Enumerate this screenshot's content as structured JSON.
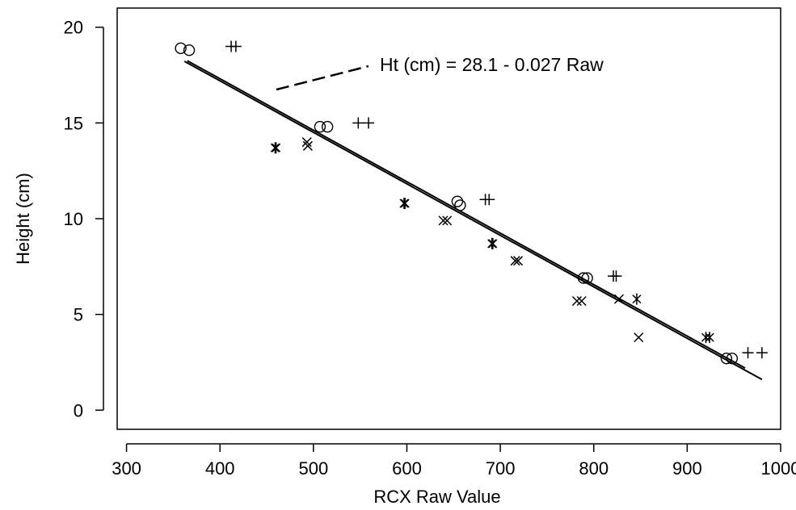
{
  "chart_data": {
    "type": "scatter",
    "xlabel": "RCX Raw Value",
    "ylabel": "Height (cm)",
    "xlim": [
      290,
      1000
    ],
    "ylim": [
      -1,
      21
    ],
    "xticks": [
      300,
      400,
      500,
      600,
      700,
      800,
      900,
      1000
    ],
    "yticks": [
      0,
      5,
      10,
      15,
      20
    ],
    "grid": false,
    "legend": "none",
    "annotation": "Ht (cm) = 28.1 - 0.027 Raw",
    "series": [
      {
        "marker": "circle",
        "points": [
          [
            358,
            18.9
          ],
          [
            367,
            18.8
          ],
          [
            507,
            14.8
          ],
          [
            515,
            14.8
          ],
          [
            654,
            10.9
          ],
          [
            657,
            10.7
          ],
          [
            789,
            6.9
          ],
          [
            793,
            6.9
          ],
          [
            942,
            2.7
          ],
          [
            948,
            2.7
          ]
        ]
      },
      {
        "marker": "plus",
        "points": [
          [
            412,
            19.0
          ],
          [
            417,
            19.0
          ],
          [
            548,
            15.0
          ],
          [
            559,
            15.0
          ],
          [
            684,
            11.0
          ],
          [
            688,
            11.0
          ],
          [
            821,
            7.0
          ],
          [
            824,
            7.0
          ],
          [
            965,
            3.0
          ],
          [
            980,
            3.0
          ]
        ]
      },
      {
        "marker": "x",
        "points": [
          [
            493,
            14.0
          ],
          [
            494,
            13.8
          ],
          [
            639,
            9.9
          ],
          [
            643,
            9.9
          ],
          [
            716,
            7.8
          ],
          [
            719,
            7.8
          ],
          [
            782,
            5.7
          ],
          [
            787,
            5.7
          ],
          [
            827,
            5.8
          ],
          [
            848,
            3.8
          ]
        ]
      },
      {
        "marker": "asterisk",
        "points": [
          [
            459,
            13.7
          ],
          [
            460,
            13.7
          ],
          [
            597,
            10.8
          ],
          [
            598,
            10.8
          ],
          [
            691,
            8.7
          ],
          [
            692,
            8.7
          ],
          [
            846,
            5.8
          ],
          [
            920,
            3.8
          ],
          [
            924,
            3.8
          ]
        ]
      }
    ],
    "fit_lines": [
      {
        "x": [
          365,
          962
        ],
        "y": [
          18.25,
          2.2
        ]
      },
      {
        "x": [
          362,
          980
        ],
        "y": [
          18.22,
          1.6
        ]
      }
    ],
    "colors": {
      "marks": "#000000",
      "background": "#ffffff"
    }
  }
}
